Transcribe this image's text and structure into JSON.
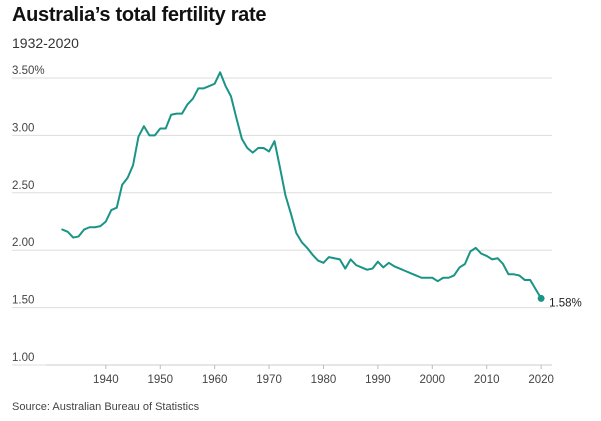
{
  "page": {
    "title": "Australia’s total fertility rate",
    "subtitle": "1932-2020",
    "source": "Source: Australian Bureau of Statistics"
  },
  "chart_data": {
    "type": "line",
    "title": "Australia’s total fertility rate",
    "subtitle": "1932-2020",
    "xlabel": "",
    "ylabel": "",
    "xlim": [
      1929,
      2022
    ],
    "ylim": [
      1.0,
      3.5
    ],
    "y_ticks": [
      1.0,
      1.5,
      2.0,
      2.5,
      3.0,
      3.5
    ],
    "y_tick_labels": [
      "1.00",
      "1.50",
      "2.00",
      "2.50",
      "3.00",
      "3.50%"
    ],
    "x_ticks": [
      1940,
      1950,
      1960,
      1970,
      1980,
      1990,
      2000,
      2010,
      2020
    ],
    "x_tick_labels": [
      "1940",
      "1950",
      "1960",
      "1970",
      "1980",
      "1990",
      "2000",
      "2010",
      "2020"
    ],
    "grid": "horizontal",
    "line_color": "#1a9487",
    "grid_color": "#dddddd",
    "end_label": "1.58%",
    "series": [
      {
        "x": [
          1932,
          1933,
          1934,
          1935,
          1936,
          1937,
          1938,
          1939,
          1940,
          1941,
          1942,
          1943,
          1944,
          1945,
          1946,
          1947,
          1948,
          1949,
          1950,
          1951,
          1952,
          1953,
          1954,
          1955,
          1956,
          1957,
          1958,
          1959,
          1960,
          1961,
          1962,
          1963,
          1964,
          1965,
          1966,
          1967,
          1968,
          1969,
          1970,
          1971,
          1972,
          1973,
          1974,
          1975,
          1976,
          1977,
          1978,
          1979,
          1980,
          1981,
          1982,
          1983,
          1984,
          1985,
          1986,
          1987,
          1988,
          1989,
          1990,
          1991,
          1992,
          1993,
          1994,
          1995,
          1996,
          1997,
          1998,
          1999,
          2000,
          2001,
          2002,
          2003,
          2004,
          2005,
          2006,
          2007,
          2008,
          2009,
          2010,
          2011,
          2012,
          2013,
          2014,
          2015,
          2016,
          2017,
          2018,
          2019,
          2020
        ],
        "values": [
          2.18,
          2.16,
          2.11,
          2.12,
          2.18,
          2.2,
          2.2,
          2.21,
          2.25,
          2.35,
          2.37,
          2.57,
          2.63,
          2.74,
          2.99,
          3.08,
          3.0,
          3.0,
          3.06,
          3.06,
          3.18,
          3.19,
          3.19,
          3.27,
          3.32,
          3.41,
          3.41,
          3.43,
          3.45,
          3.55,
          3.43,
          3.34,
          3.15,
          2.97,
          2.89,
          2.85,
          2.89,
          2.89,
          2.86,
          2.95,
          2.72,
          2.48,
          2.32,
          2.15,
          2.07,
          2.02,
          1.96,
          1.91,
          1.89,
          1.94,
          1.93,
          1.92,
          1.84,
          1.92,
          1.87,
          1.85,
          1.83,
          1.84,
          1.9,
          1.85,
          1.89,
          1.86,
          1.84,
          1.82,
          1.8,
          1.78,
          1.76,
          1.76,
          1.76,
          1.73,
          1.76,
          1.76,
          1.78,
          1.85,
          1.88,
          1.99,
          2.02,
          1.97,
          1.95,
          1.92,
          1.93,
          1.88,
          1.79,
          1.79,
          1.78,
          1.74,
          1.74,
          1.66,
          1.58
        ]
      }
    ]
  }
}
